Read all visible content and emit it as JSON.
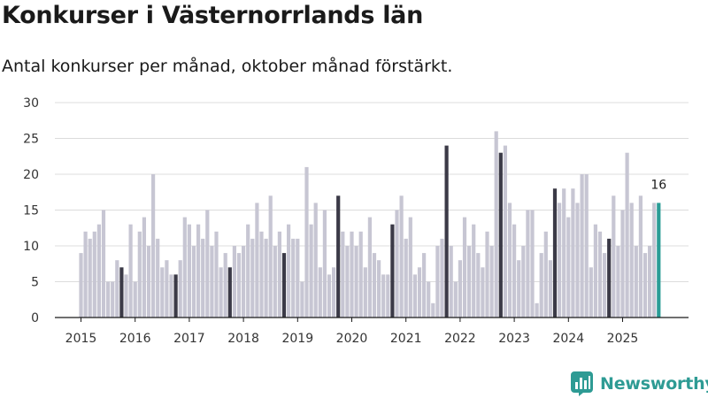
{
  "title": "Konkurser i Västernorrlands län",
  "subtitle": "Antal konkurser per månad, oktober månad förstärkt.",
  "brand": "Newsworthy",
  "colors": {
    "bar": "#c7c6d3",
    "highlight": "#3b3a47",
    "latest": "#2a9c96",
    "grid": "#dcdcdc",
    "brand": "#2e9b94"
  },
  "chart_data": {
    "type": "bar",
    "title": "Konkurser i Västernorrlands län",
    "xlabel": "",
    "ylabel": "",
    "ylim": [
      0,
      30
    ],
    "yticks": [
      0,
      5,
      10,
      15,
      20,
      25,
      30
    ],
    "grid": true,
    "start": "2015-01",
    "highlight_month": 10,
    "x_tick_labels": [
      "2015",
      "2016",
      "2017",
      "2018",
      "2019",
      "2020",
      "2021",
      "2022",
      "2023",
      "2024",
      "2025"
    ],
    "values": [
      9,
      12,
      11,
      12,
      13,
      15,
      5,
      5,
      8,
      7,
      6,
      13,
      5,
      12,
      14,
      10,
      20,
      11,
      7,
      8,
      6,
      6,
      8,
      14,
      13,
      10,
      13,
      11,
      15,
      10,
      12,
      7,
      9,
      7,
      10,
      9,
      10,
      13,
      11,
      16,
      12,
      11,
      17,
      10,
      12,
      9,
      13,
      11,
      11,
      5,
      21,
      13,
      16,
      7,
      15,
      6,
      7,
      17,
      12,
      10,
      12,
      10,
      12,
      7,
      14,
      9,
      8,
      6,
      6,
      13,
      15,
      17,
      11,
      14,
      6,
      7,
      9,
      5,
      2,
      10,
      11,
      24,
      10,
      5,
      8,
      14,
      10,
      13,
      9,
      7,
      12,
      10,
      26,
      23,
      24,
      16,
      13,
      8,
      10,
      15,
      15,
      2,
      9,
      12,
      8,
      18,
      16,
      18,
      14,
      18,
      16,
      20,
      20,
      7,
      13,
      12,
      9,
      11,
      17,
      10,
      15,
      23,
      16,
      10,
      17,
      9,
      10,
      16,
      16
    ],
    "annotation": {
      "label": "16",
      "value": 16
    }
  }
}
